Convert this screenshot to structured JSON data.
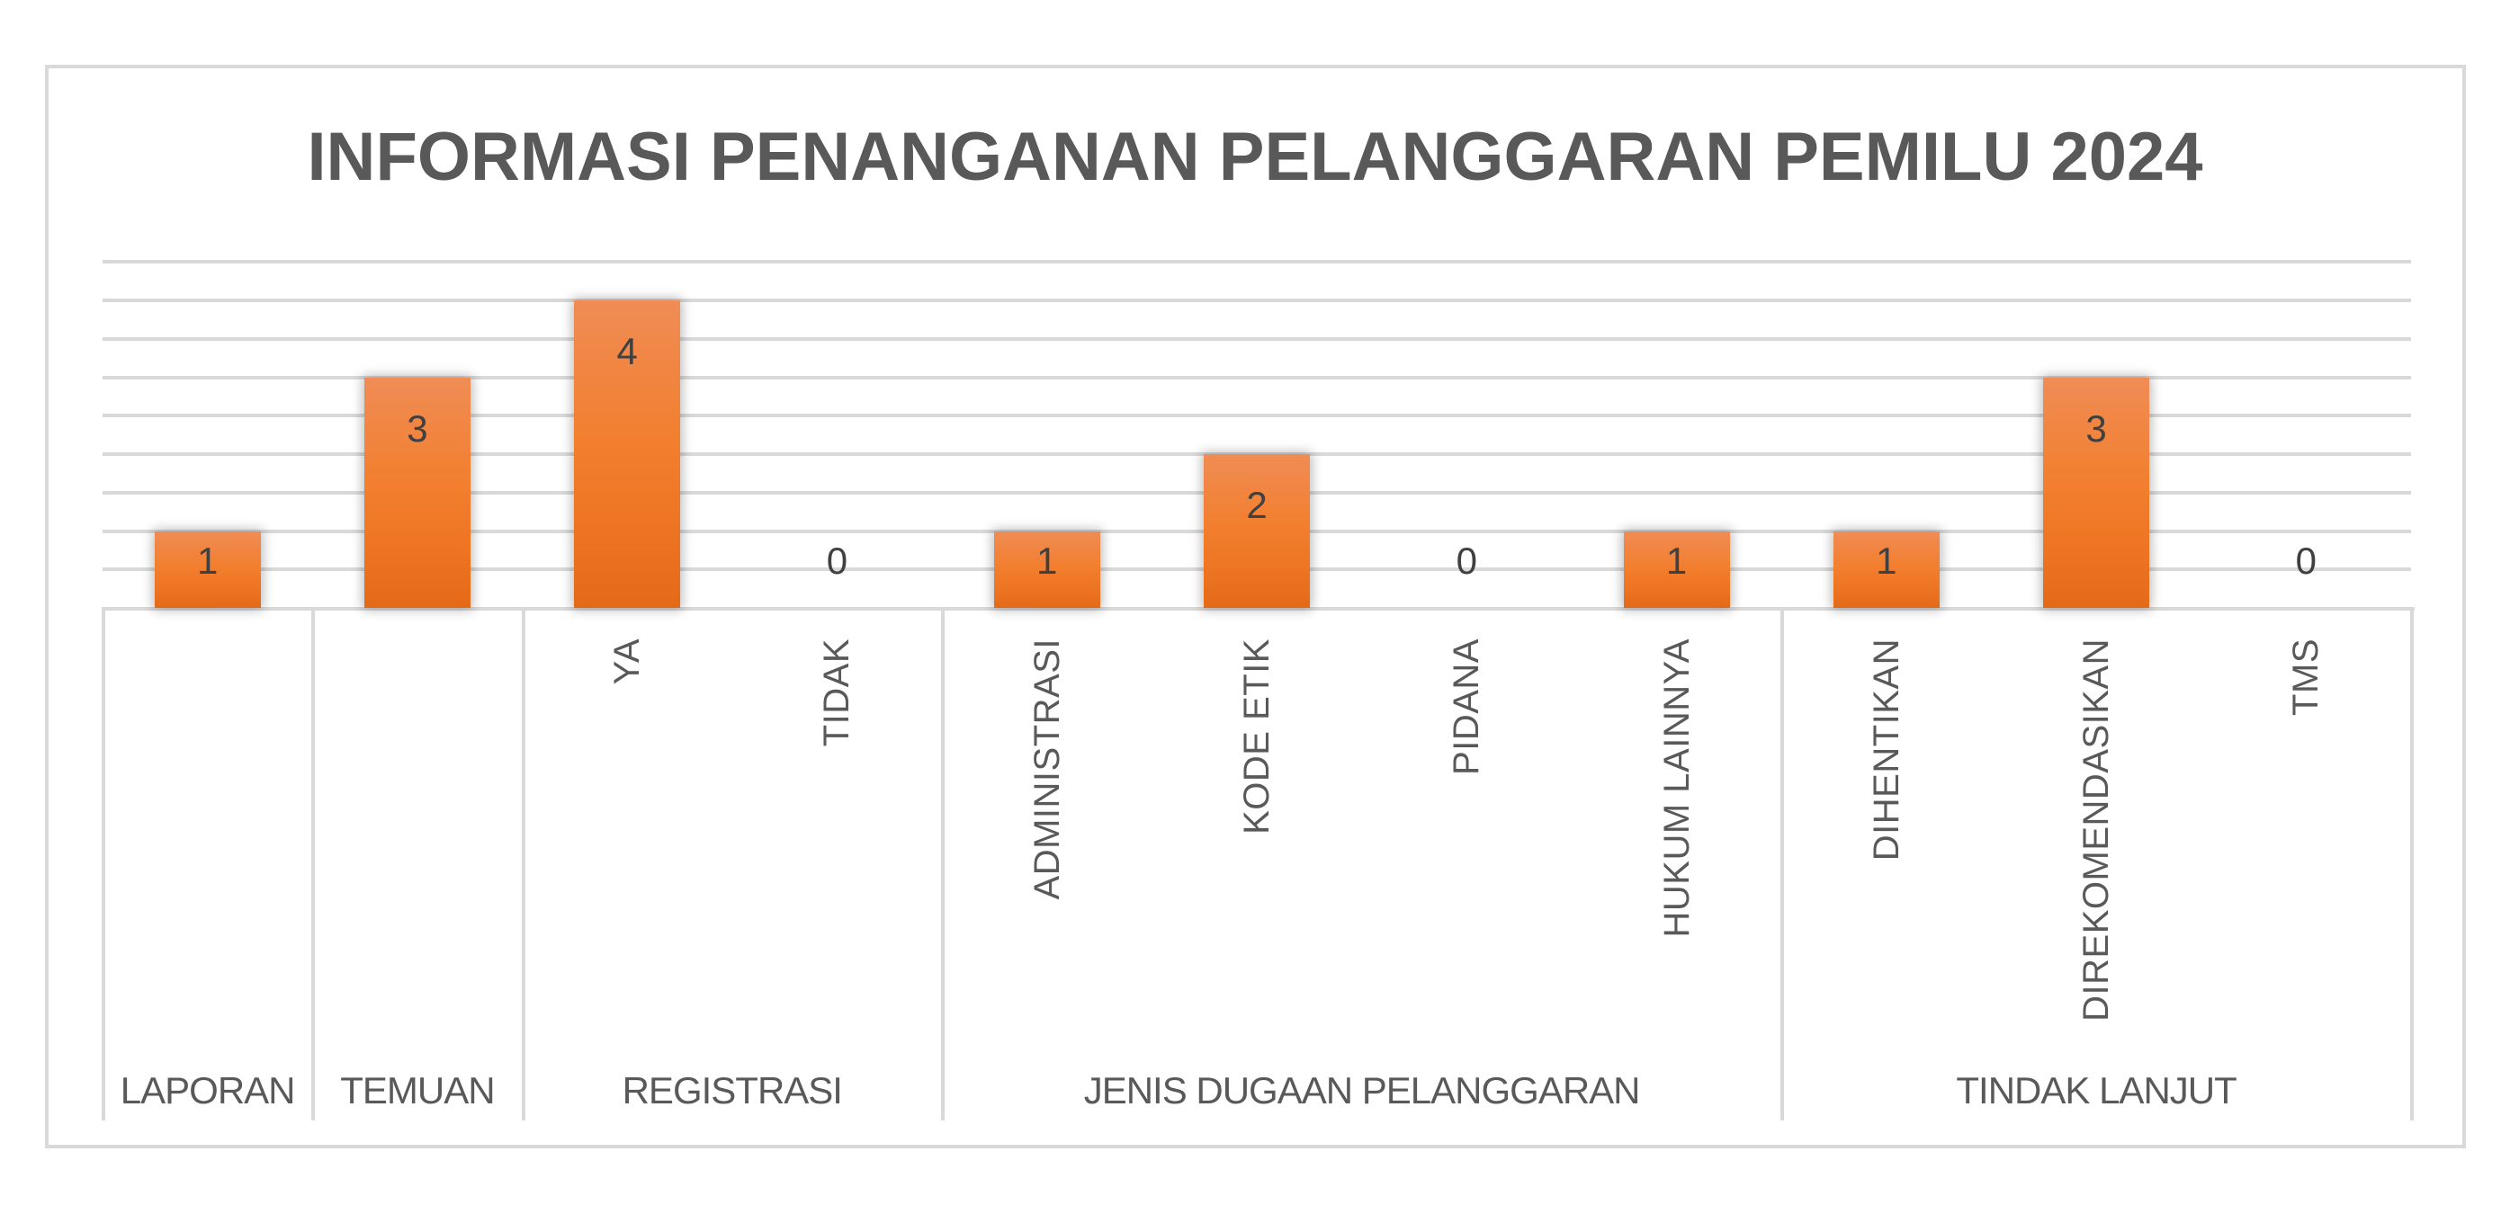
{
  "chart_data": {
    "type": "bar",
    "title": "INFORMASI PENANGANAN PELANGGARAN PEMILU 2024",
    "categories": [
      "LAPORAN",
      "TEMUAN",
      "YA",
      "TIDAK",
      "ADMINISTRASI",
      "KODE ETIK",
      "PIDANA",
      "HUKUM LAINNYA",
      "DIHENTIKAN",
      "DIREKOMENDASIKAN",
      "TMS"
    ],
    "category_tick_labels": [
      "",
      "",
      "YA",
      "TIDAK",
      "ADMINISTRASI",
      "KODE ETIK",
      "PIDANA",
      "HUKUM LAINNYA",
      "DIHENTIKAN",
      "DIREKOMENDASIKAN",
      "TMS"
    ],
    "values": [
      1,
      3,
      4,
      0,
      1,
      2,
      0,
      1,
      1,
      3,
      0
    ],
    "groups": [
      {
        "label": "LAPORAN",
        "start": 0,
        "count": 1
      },
      {
        "label": "TEMUAN",
        "start": 1,
        "count": 1
      },
      {
        "label": "REGISTRASI",
        "start": 2,
        "count": 2
      },
      {
        "label": "JENIS DUGAAN PELANGGARAN",
        "start": 4,
        "count": 4
      },
      {
        "label": "TINDAK LANJUT",
        "start": 8,
        "count": 3
      }
    ],
    "xlabel": "",
    "ylabel": "",
    "ylim": [
      0,
      4.5
    ],
    "y_gridline_step": 0.5,
    "grid": true,
    "y_axis_visible": false,
    "data_labels": true,
    "legend": null,
    "bar_color": "#F07C2C"
  }
}
